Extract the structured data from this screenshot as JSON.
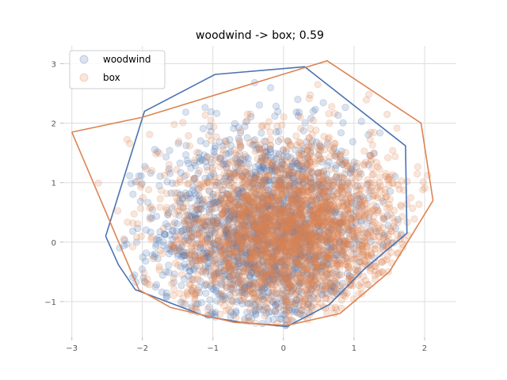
{
  "chart_data": {
    "type": "scatter",
    "title": "woodwind -> box; 0.59",
    "xlabel": "",
    "ylabel": "",
    "xlim": [
      -3.12,
      2.45
    ],
    "ylim": [
      -1.6,
      3.3
    ],
    "xticks": [
      -3,
      -2,
      -1,
      0,
      1,
      2
    ],
    "yticks": [
      -1,
      0,
      1,
      2,
      3
    ],
    "xtick_labels": [
      "−3",
      "−2",
      "−1",
      "0",
      "1",
      "2"
    ],
    "ytick_labels": [
      "−1",
      "0",
      "1",
      "2",
      "3"
    ],
    "grid": true,
    "legend_position": "top-left",
    "series": [
      {
        "name": "woodwind",
        "color": "#4c72b0",
        "hull": [
          [
            -2.52,
            0.1
          ],
          [
            -2.34,
            -0.38
          ],
          [
            -2.1,
            -0.8
          ],
          [
            -1.1,
            -1.25
          ],
          [
            -0.6,
            -1.35
          ],
          [
            0.05,
            -1.42
          ],
          [
            0.65,
            -1.05
          ],
          [
            1.15,
            -0.45
          ],
          [
            1.75,
            0.15
          ],
          [
            1.73,
            1.62
          ],
          [
            0.3,
            2.95
          ],
          [
            -0.97,
            2.82
          ],
          [
            -1.97,
            2.2
          ],
          [
            -2.52,
            0.1
          ]
        ],
        "center": [
          -0.25,
          0.15
        ],
        "spread": [
          0.75,
          0.85
        ],
        "n_points": 1700
      },
      {
        "name": "box",
        "color": "#dd8452",
        "hull": [
          [
            -3.0,
            1.85
          ],
          [
            -2.0,
            2.1
          ],
          [
            0.62,
            3.05
          ],
          [
            1.95,
            2.0
          ],
          [
            2.12,
            0.7
          ],
          [
            1.5,
            -0.5
          ],
          [
            0.8,
            -1.2
          ],
          [
            0.05,
            -1.4
          ],
          [
            -0.7,
            -1.35
          ],
          [
            -1.6,
            -1.1
          ],
          [
            -2.05,
            -0.8
          ],
          [
            -3.0,
            1.85
          ]
        ],
        "center": [
          0.05,
          0.2
        ],
        "spread": [
          0.78,
          0.75
        ],
        "n_points": 2600
      }
    ]
  }
}
